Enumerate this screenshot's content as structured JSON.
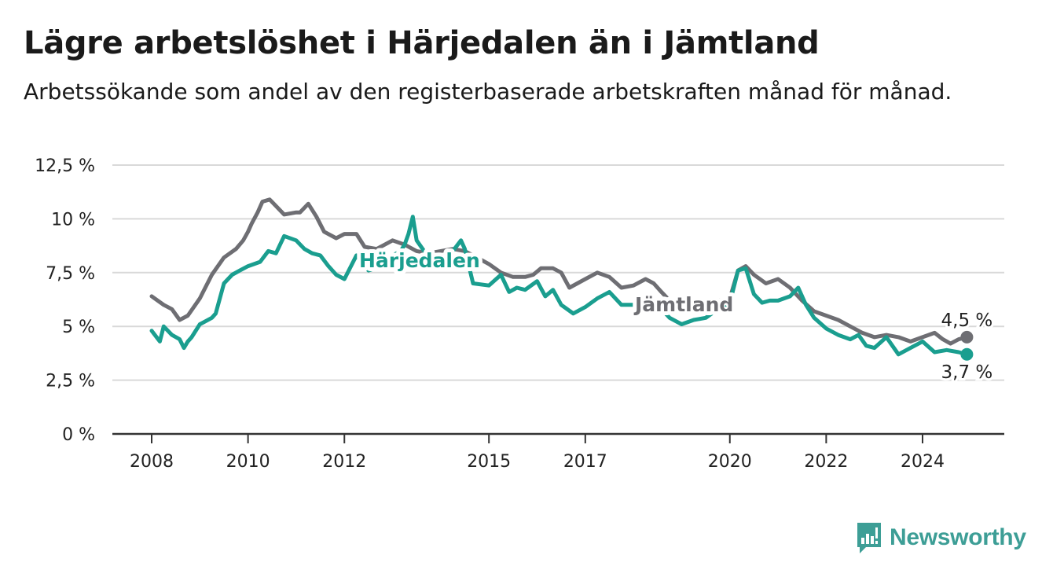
{
  "header": {
    "title": "Lägre arbetslöshet i Härjedalen än i Jämtland",
    "subtitle": "Arbetssökande som andel av den registerbaserade arbetskraften månad för månad."
  },
  "brand": {
    "name": "Newsworthy",
    "icon": "bar-chart-logo-icon",
    "color": "#3d9e96"
  },
  "chart_data": {
    "type": "line",
    "title": "Lägre arbetslöshet i Härjedalen än i Jämtland",
    "subtitle": "Arbetssökande som andel av den registerbaserade arbetskraften månad för månad.",
    "xlabel": "",
    "ylabel": "",
    "xlim": [
      2008,
      2025.5
    ],
    "ylim": [
      0,
      12.5
    ],
    "x_ticks": [
      2008,
      2010,
      2012,
      2015,
      2017,
      2020,
      2022,
      2024
    ],
    "x_tick_labels": [
      "2008",
      "2010",
      "2012",
      "2015",
      "2017",
      "2020",
      "2022",
      "2024"
    ],
    "y_ticks": [
      0,
      2.5,
      5,
      7.5,
      10,
      12.5
    ],
    "y_tick_labels": [
      "0 %",
      "2,5 %",
      "5 %",
      "7,5 %",
      "10 %",
      "12,5 %"
    ],
    "grid": true,
    "legend": "inline labels",
    "series": [
      {
        "name": "Jämtland",
        "color": "#6e6e73",
        "label": "Jämtland",
        "end_label": "4,5 %",
        "x": [
          2008.0,
          2008.25,
          2008.42,
          2008.58,
          2008.75,
          2009.0,
          2009.25,
          2009.5,
          2009.75,
          2009.9,
          2010.0,
          2010.08,
          2010.2,
          2010.3,
          2010.45,
          2010.75,
          2011.0,
          2011.08,
          2011.25,
          2011.42,
          2011.58,
          2011.83,
          2012.0,
          2012.25,
          2012.42,
          2012.67,
          2013.0,
          2013.25,
          2013.5,
          2013.75,
          2014.0,
          2014.25,
          2014.5,
          2014.75,
          2015.0,
          2015.25,
          2015.5,
          2015.75,
          2015.92,
          2016.08,
          2016.33,
          2016.5,
          2016.67,
          2017.0,
          2017.25,
          2017.5,
          2017.75,
          2018.0,
          2018.25,
          2018.42,
          2018.58,
          2018.75,
          2019.0,
          2019.25,
          2019.5,
          2019.75,
          2020.0,
          2020.17,
          2020.33,
          2020.5,
          2020.75,
          2021.0,
          2021.25,
          2021.5,
          2021.75,
          2022.0,
          2022.25,
          2022.5,
          2022.75,
          2023.0,
          2023.25,
          2023.5,
          2023.75,
          2024.0,
          2024.25,
          2024.42,
          2024.58,
          2024.75,
          2024.92
        ],
        "y": [
          6.4,
          6.0,
          5.8,
          5.3,
          5.5,
          6.3,
          7.4,
          8.2,
          8.6,
          9.0,
          9.4,
          9.8,
          10.3,
          10.8,
          10.9,
          10.2,
          10.3,
          10.3,
          10.7,
          10.1,
          9.4,
          9.1,
          9.3,
          9.3,
          8.7,
          8.6,
          9.0,
          8.8,
          8.5,
          8.4,
          8.5,
          8.6,
          8.5,
          8.2,
          7.9,
          7.5,
          7.3,
          7.3,
          7.4,
          7.7,
          7.7,
          7.5,
          6.8,
          7.2,
          7.5,
          7.3,
          6.8,
          6.9,
          7.2,
          7.0,
          6.6,
          6.2,
          6.0,
          6.0,
          6.2,
          6.2,
          6.3,
          7.6,
          7.8,
          7.4,
          7.0,
          7.2,
          6.8,
          6.2,
          5.7,
          5.5,
          5.3,
          5.0,
          4.7,
          4.5,
          4.6,
          4.5,
          4.3,
          4.5,
          4.7,
          4.4,
          4.2,
          4.4,
          4.5
        ]
      },
      {
        "name": "Härjedalen",
        "color": "#1a9e8f",
        "label": "Härjedalen",
        "end_label": "3,7 %",
        "x": [
          2008.0,
          2008.17,
          2008.25,
          2008.42,
          2008.58,
          2008.67,
          2008.75,
          2008.83,
          2009.0,
          2009.25,
          2009.33,
          2009.5,
          2009.67,
          2009.83,
          2010.0,
          2010.25,
          2010.42,
          2010.58,
          2010.75,
          2011.0,
          2011.17,
          2011.33,
          2011.5,
          2011.67,
          2011.83,
          2012.0,
          2012.25,
          2012.5,
          2012.75,
          2013.0,
          2013.17,
          2013.25,
          2013.33,
          2013.42,
          2013.5,
          2013.75,
          2014.0,
          2014.25,
          2014.42,
          2014.5,
          2014.67,
          2015.0,
          2015.25,
          2015.42,
          2015.58,
          2015.75,
          2016.0,
          2016.17,
          2016.33,
          2016.5,
          2016.75,
          2017.0,
          2017.25,
          2017.5,
          2017.75,
          2018.0,
          2018.17,
          2018.33,
          2018.5,
          2018.75,
          2019.0,
          2019.25,
          2019.5,
          2019.75,
          2020.0,
          2020.17,
          2020.33,
          2020.5,
          2020.67,
          2020.83,
          2021.0,
          2021.25,
          2021.42,
          2021.58,
          2021.75,
          2022.0,
          2022.25,
          2022.5,
          2022.67,
          2022.83,
          2023.0,
          2023.25,
          2023.5,
          2023.75,
          2024.0,
          2024.25,
          2024.5,
          2024.75,
          2024.92
        ],
        "y": [
          4.8,
          4.3,
          5.0,
          4.6,
          4.4,
          4.0,
          4.3,
          4.5,
          5.1,
          5.4,
          5.6,
          7.0,
          7.4,
          7.6,
          7.8,
          8.0,
          8.5,
          8.4,
          9.2,
          9.0,
          8.6,
          8.4,
          8.3,
          7.8,
          7.4,
          7.2,
          8.3,
          7.6,
          7.8,
          8.3,
          8.5,
          8.8,
          9.3,
          10.1,
          9.0,
          8.2,
          8.0,
          8.5,
          9.0,
          8.6,
          7.0,
          6.9,
          7.4,
          6.6,
          6.8,
          6.7,
          7.1,
          6.4,
          6.7,
          6.0,
          5.6,
          5.9,
          6.3,
          6.6,
          6.0,
          6.0,
          6.2,
          6.5,
          6.0,
          5.4,
          5.1,
          5.3,
          5.4,
          5.8,
          6.1,
          7.6,
          7.7,
          6.5,
          6.1,
          6.2,
          6.2,
          6.4,
          6.8,
          6.0,
          5.4,
          4.9,
          4.6,
          4.4,
          4.6,
          4.1,
          4.0,
          4.5,
          3.7,
          4.0,
          4.3,
          3.8,
          3.9,
          3.8,
          3.7
        ]
      }
    ],
    "annotations": [
      {
        "text": "Härjedalen",
        "series": "Härjedalen"
      },
      {
        "text": "Jämtland",
        "series": "Jämtland"
      },
      {
        "text": "4,5 %",
        "series": "Jämtland"
      },
      {
        "text": "3,7 %",
        "series": "Härjedalen"
      }
    ]
  }
}
